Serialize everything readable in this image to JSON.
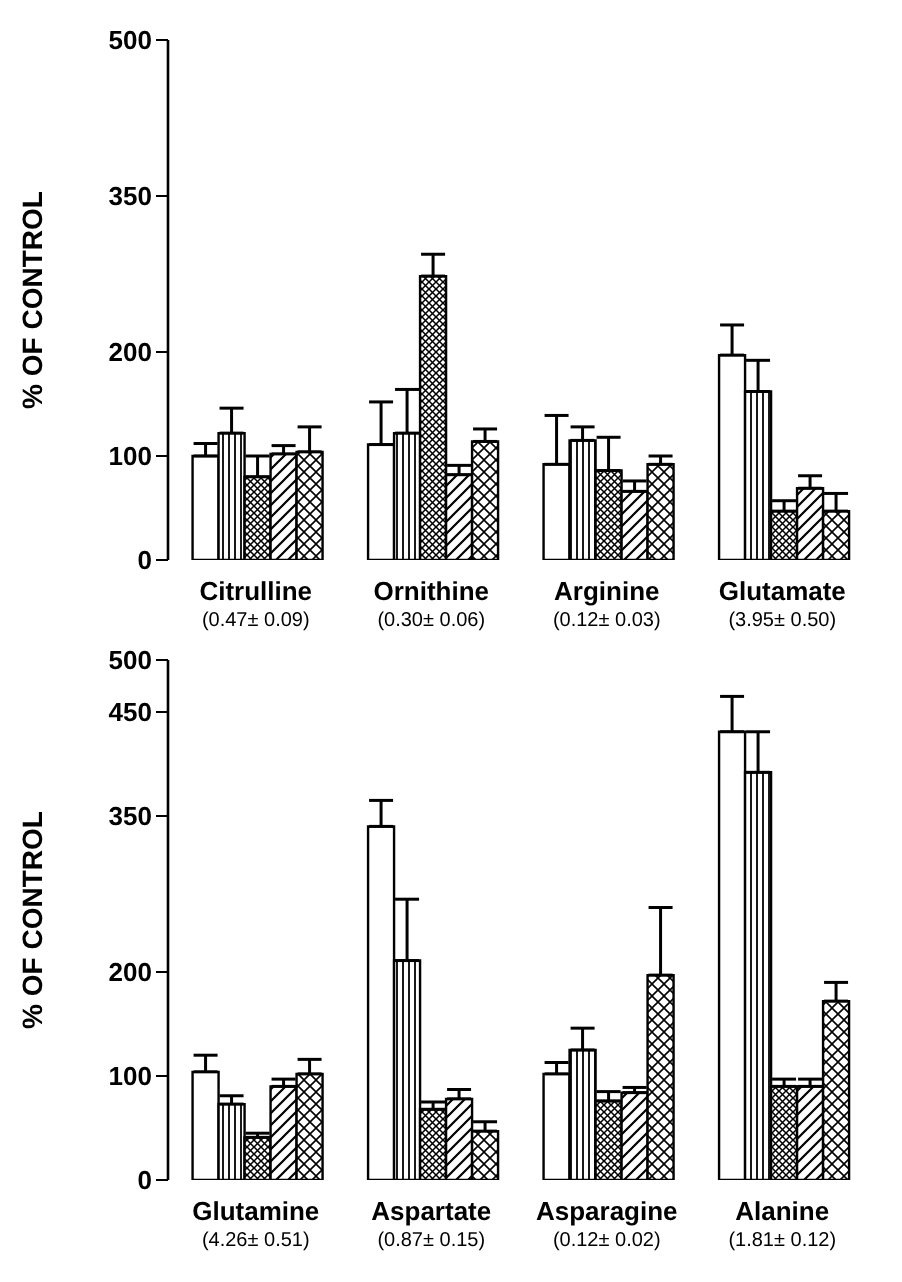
{
  "chart_data": [
    {
      "type": "bar",
      "ylabel": "% OF CONTROL",
      "categories": [
        "Citrulline\n(0.47± 0.09)",
        "Ornithine\n(0.30± 0.06)",
        "Arginine\n(0.12± 0.03)",
        "Glutamate\n(3.95± 0.50)"
      ],
      "ylim": [
        0,
        500
      ],
      "yticks": [
        0,
        100,
        200,
        350,
        500
      ],
      "grid": false,
      "legend": false,
      "series": [
        {
          "color": "#000000",
          "values": [
            100,
            111,
            92,
            197
          ],
          "errors": [
            12,
            41,
            47,
            29
          ]
        },
        {
          "color": "#000000",
          "values": [
            122,
            122,
            115,
            162
          ],
          "errors": [
            24,
            42,
            13,
            30
          ]
        },
        {
          "color": "#000000",
          "values": [
            80,
            273,
            86,
            47
          ],
          "errors": [
            20,
            21,
            32,
            10
          ]
        },
        {
          "color": "#000000",
          "values": [
            102,
            82,
            66,
            69
          ],
          "errors": [
            8,
            9,
            10,
            12
          ]
        },
        {
          "color": "#000000",
          "values": [
            104,
            114,
            92,
            47
          ],
          "errors": [
            24,
            12,
            8,
            17
          ]
        }
      ]
    },
    {
      "type": "bar",
      "ylabel": "% OF CONTROL",
      "categories": [
        "Glutamine\n(4.26± 0.51)",
        "Aspartate\n(0.87± 0.15)",
        "Asparagine\n(0.12± 0.02)",
        "Alanine\n(1.81± 0.12)"
      ],
      "ylim": [
        0,
        500
      ],
      "yticks": [
        0,
        100,
        200,
        350,
        450,
        500
      ],
      "grid": false,
      "legend": false,
      "series": [
        {
          "color": "#000000",
          "values": [
            104,
            340,
            102,
            431
          ],
          "errors": [
            16,
            25,
            11,
            34
          ]
        },
        {
          "color": "#000000",
          "values": [
            73,
            211,
            125,
            392
          ],
          "errors": [
            8,
            59,
            21,
            39
          ]
        },
        {
          "color": "#000000",
          "values": [
            41,
            68,
            76,
            90
          ],
          "errors": [
            4,
            7,
            9,
            7
          ]
        },
        {
          "color": "#000000",
          "values": [
            90,
            78,
            84,
            90
          ],
          "errors": [
            7,
            9,
            5,
            7
          ]
        },
        {
          "color": "#000000",
          "values": [
            102,
            47,
            197,
            172
          ],
          "errors": [
            14,
            9,
            65,
            18
          ]
        }
      ]
    }
  ]
}
